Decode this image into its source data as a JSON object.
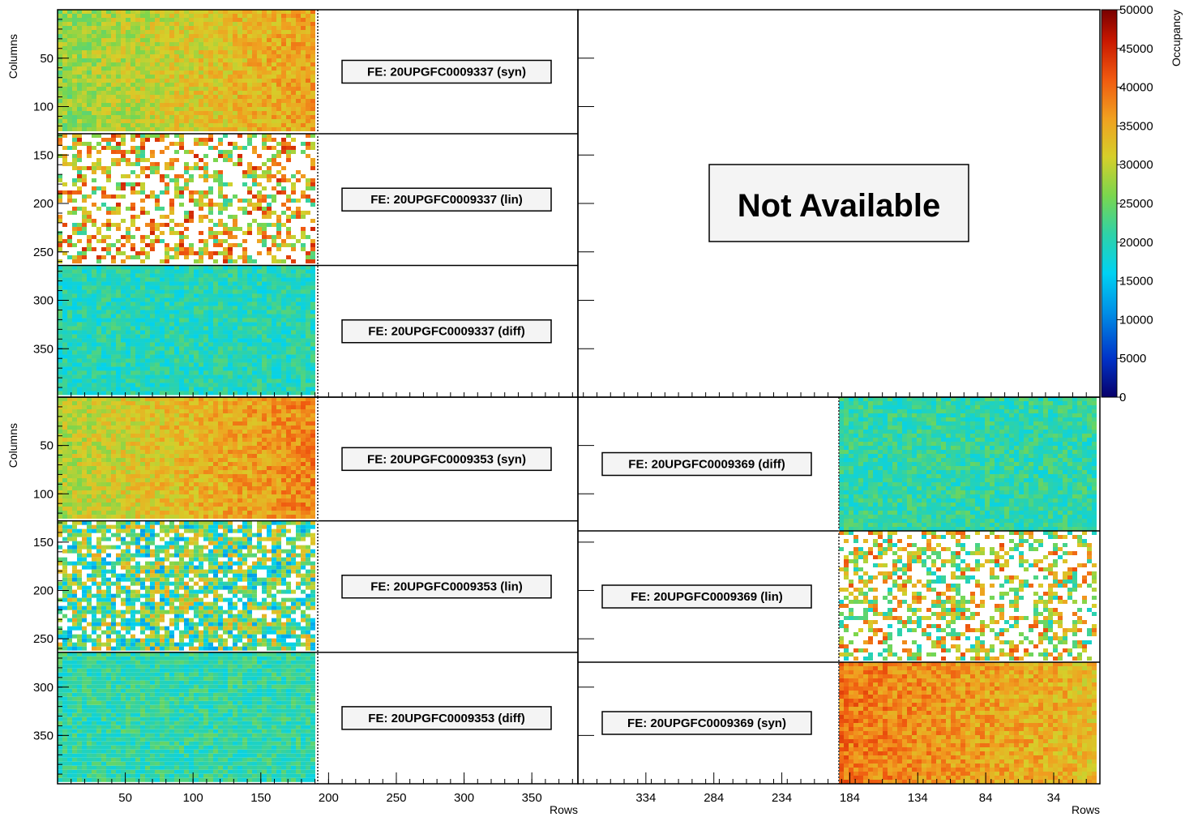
{
  "chart_data": {
    "type": "heatmap",
    "z_label": "Occupancy",
    "z_range": [
      0,
      50000
    ],
    "z_ticks": [
      "50000",
      "45000",
      "40000",
      "35000",
      "30000",
      "25000",
      "20000",
      "15000",
      "10000",
      "5000",
      "0"
    ],
    "y_label": "Columns",
    "y_ticks": [
      "50",
      "100",
      "150",
      "200",
      "250",
      "300",
      "350"
    ],
    "x_label": "Rows",
    "x_ticks_left": [
      "50",
      "100",
      "150",
      "200",
      "250",
      "300",
      "350"
    ],
    "x_ticks_right": [
      "334",
      "284",
      "234",
      "184",
      "134",
      "84",
      "34"
    ],
    "panels": [
      {
        "position": "top-left",
        "data_rows": [
          0,
          192
        ],
        "fe_chips": [
          {
            "label": "FE: 20UPGFC0009337 (syn)",
            "mean_occupancy": 32000,
            "trend": "increasing with row",
            "fill": "dense"
          },
          {
            "label": "FE: 20UPGFC0009337 (lin)",
            "mean_occupancy": 33000,
            "trend": "noisy, sparse",
            "fill": "sparse"
          },
          {
            "label": "FE: 20UPGFC0009337 (diff)",
            "mean_occupancy": 20000,
            "trend": "flat",
            "fill": "dense"
          }
        ]
      },
      {
        "position": "top-right",
        "not_available": "Not Available"
      },
      {
        "position": "bottom-left",
        "data_rows": [
          0,
          192
        ],
        "fe_chips": [
          {
            "label": "FE: 20UPGFC0009353 (syn)",
            "mean_occupancy": 34000,
            "trend": "increasing with row",
            "fill": "dense"
          },
          {
            "label": "FE: 20UPGFC0009353 (lin)",
            "mean_occupancy": 24000,
            "trend": "noisy",
            "fill": "medium"
          },
          {
            "label": "FE: 20UPGFC0009353 (diff)",
            "mean_occupancy": 21000,
            "trend": "flat",
            "fill": "dense"
          }
        ]
      },
      {
        "position": "bottom-right",
        "data_rows": [
          192,
          0
        ],
        "fe_chips": [
          {
            "label": "FE: 20UPGFC0009369 (diff)",
            "mean_occupancy": 21000,
            "trend": "flat",
            "fill": "dense"
          },
          {
            "label": "FE: 20UPGFC0009369 (lin)",
            "mean_occupancy": 30000,
            "trend": "noisy, sparse",
            "fill": "sparse"
          },
          {
            "label": "FE: 20UPGFC0009369 (syn)",
            "mean_occupancy": 36000,
            "trend": "decreasing toward low rows",
            "fill": "dense"
          }
        ]
      }
    ]
  }
}
